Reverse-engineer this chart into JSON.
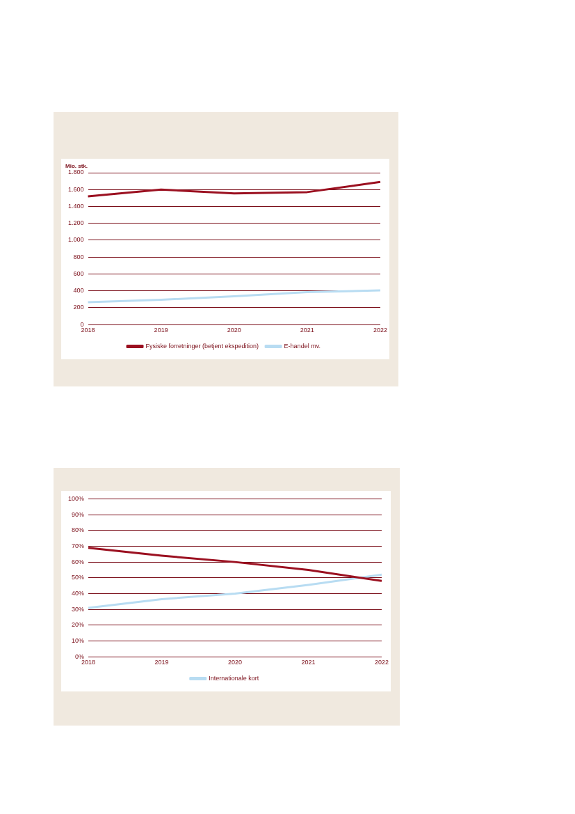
{
  "chart_data": [
    {
      "type": "line",
      "ylabel": "Mio. stk.",
      "categories": [
        "2018",
        "2019",
        "2020",
        "2021",
        "2022"
      ],
      "series": [
        {
          "name": "Fysiske forretninger (betjent ekspedition)",
          "color": "#9b1020",
          "values": [
            1520,
            1600,
            1555,
            1570,
            1690
          ]
        },
        {
          "name": "E-handel mv.",
          "color": "#b8dcf2",
          "values": [
            265,
            295,
            335,
            385,
            405
          ]
        }
      ],
      "ylim": [
        0,
        1800
      ],
      "yticks": [
        0,
        {
          "value": 200,
          "label": "200"
        },
        {
          "value": 400,
          "label": "400"
        },
        {
          "value": 600,
          "label": "600"
        },
        {
          "value": 800,
          "label": "800"
        },
        {
          "value": 1000,
          "label": "1.000"
        },
        {
          "value": 1200,
          "label": "1.200"
        },
        {
          "value": 1400,
          "label": "1.400"
        },
        {
          "value": 1600,
          "label": "1.600"
        },
        {
          "value": 1800,
          "label": "1.800"
        }
      ],
      "grid": "y",
      "legend": "bottom",
      "marker": "none"
    },
    {
      "type": "line",
      "categories": [
        "2018",
        "2019",
        "2020",
        "2021",
        "2022"
      ],
      "series": [
        {
          "color": "#9b1020",
          "values": [
            69,
            64,
            60,
            55,
            48
          ]
        },
        {
          "name": "Internationale kort",
          "color": "#b8dcf2",
          "values": [
            31,
            36.5,
            40,
            45.5,
            52
          ]
        }
      ],
      "ylim": [
        0,
        100
      ],
      "yticks": [
        {
          "value": 0,
          "label": "0%"
        },
        {
          "value": 10,
          "label": "10%"
        },
        {
          "value": 20,
          "label": "20%"
        },
        {
          "value": 30,
          "label": "30%"
        },
        {
          "value": 40,
          "label": "40%"
        },
        {
          "value": 50,
          "label": "50%"
        },
        {
          "value": 60,
          "label": "60%"
        },
        {
          "value": 70,
          "label": "70%"
        },
        {
          "value": 80,
          "label": "80%"
        },
        {
          "value": 90,
          "label": "90%"
        },
        {
          "value": 100,
          "label": "100%"
        }
      ],
      "grid": "y",
      "legend": "bottom",
      "marker": "none"
    }
  ]
}
